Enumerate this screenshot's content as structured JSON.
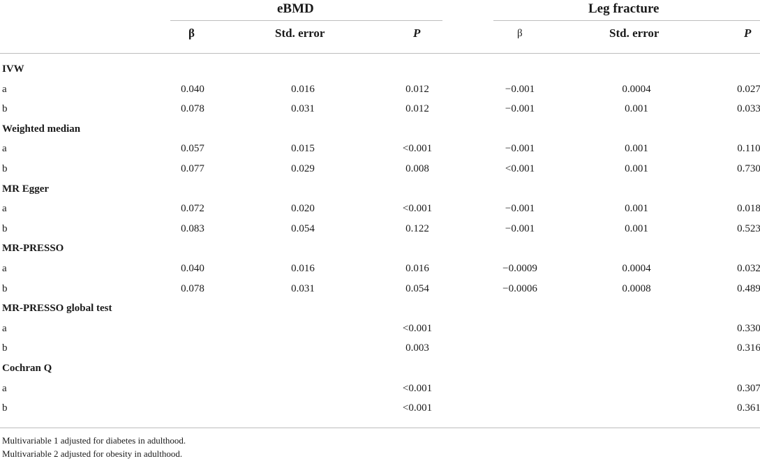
{
  "header": {
    "group_ebmd": "eBMD",
    "group_leg": "Leg fracture",
    "beta": "β",
    "std_error": "Std. error",
    "p": "P"
  },
  "rows": [
    {
      "type": "section",
      "label": "IVW"
    },
    {
      "type": "data",
      "label": "a",
      "values": [
        "0.040",
        "0.016",
        "0.012",
        "−0.001",
        "0.0004",
        "0.027"
      ]
    },
    {
      "type": "data",
      "label": "b",
      "values": [
        "0.078",
        "0.031",
        "0.012",
        "−0.001",
        "0.001",
        "0.033"
      ]
    },
    {
      "type": "section",
      "label": "Weighted median"
    },
    {
      "type": "data",
      "label": "a",
      "values": [
        "0.057",
        "0.015",
        "<0.001",
        "−0.001",
        "0.001",
        "0.110"
      ]
    },
    {
      "type": "data",
      "label": "b",
      "values": [
        "0.077",
        "0.029",
        "0.008",
        "<0.001",
        "0.001",
        "0.730"
      ]
    },
    {
      "type": "section",
      "label": "MR Egger"
    },
    {
      "type": "data",
      "label": "a",
      "values": [
        "0.072",
        "0.020",
        "<0.001",
        "−0.001",
        "0.001",
        "0.018"
      ]
    },
    {
      "type": "data",
      "label": "b",
      "values": [
        "0.083",
        "0.054",
        "0.122",
        "−0.001",
        "0.001",
        "0.523"
      ]
    },
    {
      "type": "section",
      "label": "MR-PRESSO"
    },
    {
      "type": "data",
      "label": "a",
      "values": [
        "0.040",
        "0.016",
        "0.016",
        "−0.0009",
        "0.0004",
        "0.032"
      ]
    },
    {
      "type": "data",
      "label": "b",
      "values": [
        "0.078",
        "0.031",
        "0.054",
        "−0.0006",
        "0.0008",
        "0.489"
      ]
    },
    {
      "type": "section",
      "label": "MR-PRESSO global test"
    },
    {
      "type": "data",
      "label": "a",
      "values": [
        "",
        "",
        "<0.001",
        "",
        "",
        "0.330"
      ]
    },
    {
      "type": "data",
      "label": "b",
      "values": [
        "",
        "",
        "0.003",
        "",
        "",
        "0.316"
      ]
    },
    {
      "type": "section",
      "label": "Cochran Q"
    },
    {
      "type": "data",
      "label": "a",
      "values": [
        "",
        "",
        "<0.001",
        "",
        "",
        "0.307"
      ]
    },
    {
      "type": "data",
      "label": "b",
      "values": [
        "",
        "",
        "<0.001",
        "",
        "",
        "0.361"
      ]
    }
  ],
  "footnotes": [
    "Multivariable 1 adjusted for diabetes in adulthood.",
    "Multivariable 2 adjusted for obesity in adulthood."
  ]
}
